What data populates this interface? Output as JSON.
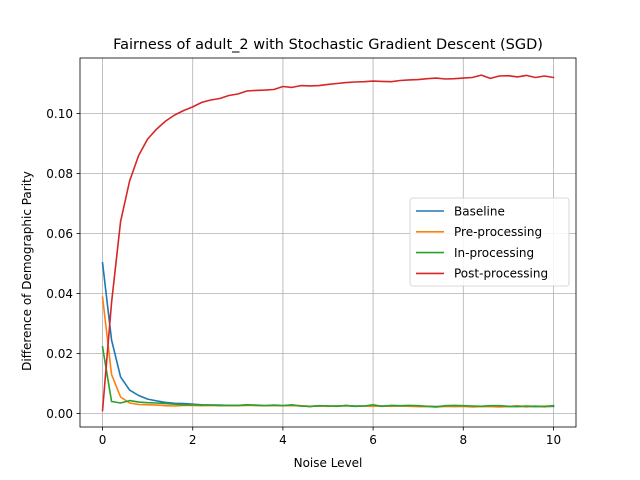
{
  "chart_data": {
    "type": "line",
    "title": "Fairness of adult_2 with Stochastic Gradient Descent (SGD)",
    "xlabel": "Noise Level",
    "ylabel": "Difference of Demographic Parity",
    "xlim": [
      -0.5,
      10.5
    ],
    "ylim": [
      -0.0045,
      0.1185
    ],
    "xticks": [
      0,
      2,
      4,
      6,
      8,
      10
    ],
    "xtick_labels": [
      "0",
      "2",
      "4",
      "6",
      "8",
      "10"
    ],
    "yticks": [
      0.0,
      0.02,
      0.04,
      0.06,
      0.08,
      0.1
    ],
    "ytick_labels": [
      "0.00",
      "0.02",
      "0.04",
      "0.06",
      "0.08",
      "0.10"
    ],
    "grid": true,
    "legend_position": "center-right",
    "x": [
      0,
      0.2,
      0.4,
      0.6,
      0.8,
      1.0,
      1.2,
      1.4,
      1.6,
      1.8,
      2.0,
      2.2,
      2.4,
      2.6,
      2.8,
      3.0,
      3.2,
      3.4,
      3.6,
      3.8,
      4.0,
      4.2,
      4.4,
      4.6,
      4.8,
      5.0,
      5.2,
      5.4,
      5.6,
      5.8,
      6.0,
      6.2,
      6.4,
      6.6,
      6.8,
      7.0,
      7.2,
      7.4,
      7.6,
      7.8,
      8.0,
      8.2,
      8.4,
      8.6,
      8.8,
      9.0,
      9.2,
      9.4,
      9.6,
      9.8,
      10.0
    ],
    "series": [
      {
        "name": "Baseline",
        "color": "#1f77b4",
        "values": [
          0.0502,
          0.0245,
          0.0122,
          0.0078,
          0.006,
          0.0048,
          0.0042,
          0.0037,
          0.0034,
          0.0033,
          0.0031,
          0.0029,
          0.0028,
          0.0028,
          0.0027,
          0.0027,
          0.0028,
          0.0027,
          0.0026,
          0.0027,
          0.0026,
          0.0027,
          0.0025,
          0.0024,
          0.0025,
          0.0025,
          0.0025,
          0.0026,
          0.0025,
          0.0025,
          0.0025,
          0.0025,
          0.0025,
          0.0025,
          0.0025,
          0.0024,
          0.0024,
          0.0023,
          0.0024,
          0.0024,
          0.0024,
          0.0024,
          0.0024,
          0.0024,
          0.0024,
          0.0023,
          0.0024,
          0.0023,
          0.0023,
          0.0023,
          0.0024
        ]
      },
      {
        "name": "Pre-processing",
        "color": "#ff7f0e",
        "values": [
          0.0388,
          0.013,
          0.0055,
          0.0035,
          0.003,
          0.0029,
          0.0028,
          0.0026,
          0.0025,
          0.0027,
          0.0027,
          0.0026,
          0.0027,
          0.0026,
          0.0027,
          0.0026,
          0.0027,
          0.0027,
          0.0026,
          0.0027,
          0.0026,
          0.0027,
          0.0026,
          0.0024,
          0.0025,
          0.0024,
          0.0025,
          0.0026,
          0.0024,
          0.0025,
          0.0024,
          0.0025,
          0.0024,
          0.0025,
          0.0024,
          0.0023,
          0.0023,
          0.0022,
          0.0024,
          0.0023,
          0.0024,
          0.0022,
          0.0023,
          0.0023,
          0.0022,
          0.0023,
          0.0026,
          0.0022,
          0.0025,
          0.0022,
          0.0026
        ]
      },
      {
        "name": "In-processing",
        "color": "#2ca02c",
        "values": [
          0.0222,
          0.004,
          0.0035,
          0.0043,
          0.0038,
          0.0036,
          0.0035,
          0.0033,
          0.0031,
          0.0029,
          0.0029,
          0.0028,
          0.0028,
          0.0027,
          0.0027,
          0.0027,
          0.0029,
          0.0028,
          0.0026,
          0.0028,
          0.0026,
          0.0029,
          0.0025,
          0.0023,
          0.0026,
          0.0025,
          0.0024,
          0.0027,
          0.0024,
          0.0025,
          0.0029,
          0.0024,
          0.0027,
          0.0026,
          0.0027,
          0.0026,
          0.0024,
          0.0022,
          0.0026,
          0.0027,
          0.0026,
          0.0025,
          0.0024,
          0.0026,
          0.0026,
          0.0024,
          0.0023,
          0.0025,
          0.0024,
          0.0024,
          0.0026
        ]
      },
      {
        "name": "Post-processing",
        "color": "#d62728",
        "values": [
          0.001,
          0.037,
          0.064,
          0.0775,
          0.086,
          0.0915,
          0.0948,
          0.0975,
          0.0995,
          0.101,
          0.1022,
          0.1037,
          0.1045,
          0.105,
          0.106,
          0.1065,
          0.1075,
          0.1077,
          0.1078,
          0.108,
          0.109,
          0.1087,
          0.1093,
          0.1092,
          0.1093,
          0.1097,
          0.11,
          0.1103,
          0.1105,
          0.1106,
          0.1108,
          0.1107,
          0.1106,
          0.111,
          0.1112,
          0.1113,
          0.1116,
          0.1118,
          0.1115,
          0.1116,
          0.1118,
          0.112,
          0.1128,
          0.1117,
          0.1125,
          0.1126,
          0.1122,
          0.1127,
          0.112,
          0.1125,
          0.112
        ]
      }
    ]
  }
}
